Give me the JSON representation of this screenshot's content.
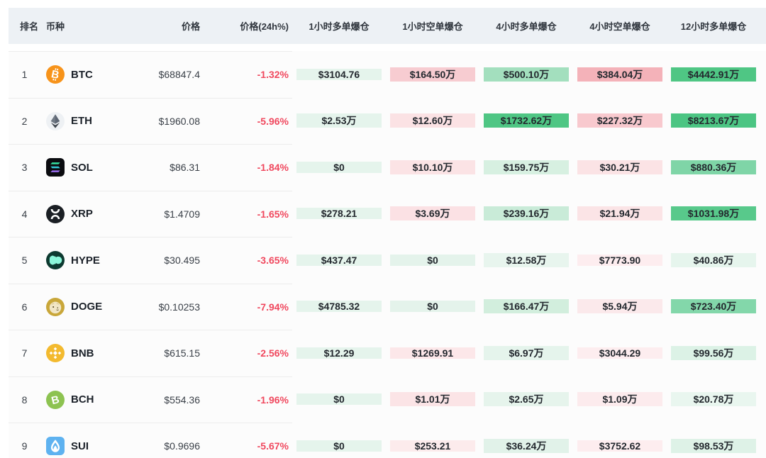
{
  "colors": {
    "header_bg": "#edf1f5",
    "row_bg": "#fcfcfc",
    "divider": "#ececec",
    "negative_red": "#f0485e",
    "value_text": "#23282e",
    "green_strong": "#4fc684",
    "red_strong": "#f4b2b9"
  },
  "table": {
    "columns": [
      {
        "key": "rank",
        "label": "排名"
      },
      {
        "key": "coin",
        "label": "币种"
      },
      {
        "key": "price",
        "label": "价格"
      },
      {
        "key": "change24h",
        "label": "价格(24h%)"
      },
      {
        "key": "liq_1h_long",
        "label": "1小时多单爆仓"
      },
      {
        "key": "liq_1h_short",
        "label": "1小时空单爆仓"
      },
      {
        "key": "liq_4h_long",
        "label": "4小时多单爆仓"
      },
      {
        "key": "liq_4h_short",
        "label": "4小时空单爆仓"
      },
      {
        "key": "liq_12h_long",
        "label": "12小时多单爆仓"
      }
    ],
    "rows": [
      {
        "rank": "1",
        "symbol": "BTC",
        "icon": "btc",
        "price": "$68847.4",
        "change": "-1.32%",
        "cells": [
          {
            "value": "$3104.76",
            "bg": "#e5f4ec"
          },
          {
            "value": "$164.50万",
            "bg": "#f7ccd1"
          },
          {
            "value": "$500.10万",
            "bg": "#a3dfbe"
          },
          {
            "value": "$384.04万",
            "bg": "#f4b2b9"
          },
          {
            "value": "$4442.91万",
            "bg": "#4fc684"
          }
        ],
        "edge_bg": "#f3aeb6"
      },
      {
        "rank": "2",
        "symbol": "ETH",
        "icon": "eth",
        "price": "$1960.08",
        "change": "-5.96%",
        "cells": [
          {
            "value": "$2.53万",
            "bg": "#e5f4ec"
          },
          {
            "value": "$12.60万",
            "bg": "#fbe2e4"
          },
          {
            "value": "$1732.62万",
            "bg": "#4fc684"
          },
          {
            "value": "$227.32万",
            "bg": "#f8c9ce"
          },
          {
            "value": "$8213.67万",
            "bg": "#4cc583"
          }
        ],
        "edge_bg": "#f6c3c9"
      },
      {
        "rank": "3",
        "symbol": "SOL",
        "icon": "sol",
        "price": "$86.31",
        "change": "-1.84%",
        "cells": [
          {
            "value": "$0",
            "bg": "#e5f4ec"
          },
          {
            "value": "$10.10万",
            "bg": "#fbe3e5"
          },
          {
            "value": "$159.75万",
            "bg": "#d7f0e1"
          },
          {
            "value": "$30.21万",
            "bg": "#fbe3e5"
          },
          {
            "value": "$880.36万",
            "bg": "#7fd5a7"
          }
        ],
        "edge_bg": "#fbe2e4"
      },
      {
        "rank": "4",
        "symbol": "XRP",
        "icon": "xrp",
        "price": "$1.4709",
        "change": "-1.65%",
        "cells": [
          {
            "value": "$278.21",
            "bg": "#e5f4ec"
          },
          {
            "value": "$3.69万",
            "bg": "#fbe1e4"
          },
          {
            "value": "$239.16万",
            "bg": "#c9ebd8"
          },
          {
            "value": "$21.94万",
            "bg": "#fbe4e6"
          },
          {
            "value": "$1031.98万",
            "bg": "#58c98b"
          }
        ],
        "edge_bg": "#fbe2e4"
      },
      {
        "rank": "5",
        "symbol": "HYPE",
        "icon": "hype",
        "price": "$30.495",
        "change": "-3.65%",
        "cells": [
          {
            "value": "$437.47",
            "bg": "#e5f4ec"
          },
          {
            "value": "$0",
            "bg": "#e4f3eb"
          },
          {
            "value": "$12.58万",
            "bg": "#e8f5ee"
          },
          {
            "value": "$7773.90",
            "bg": "#fdedef"
          },
          {
            "value": "$40.86万",
            "bg": "#e6f5ed"
          }
        ],
        "edge_bg": "#fdeeef"
      },
      {
        "rank": "6",
        "symbol": "DOGE",
        "icon": "doge",
        "price": "$0.10253",
        "change": "-7.94%",
        "cells": [
          {
            "value": "$4785.32",
            "bg": "#e5f4ec"
          },
          {
            "value": "$0",
            "bg": "#e4f3eb"
          },
          {
            "value": "$166.47万",
            "bg": "#d2eedd"
          },
          {
            "value": "$5.94万",
            "bg": "#fbe9eb"
          },
          {
            "value": "$723.40万",
            "bg": "#83d7aa"
          }
        ],
        "edge_bg": "#fbe8ea"
      },
      {
        "rank": "7",
        "symbol": "BNB",
        "icon": "bnb",
        "price": "$615.15",
        "change": "-2.56%",
        "cells": [
          {
            "value": "$12.29",
            "bg": "#e5f4ec"
          },
          {
            "value": "$1269.91",
            "bg": "#fce7e9"
          },
          {
            "value": "$6.97万",
            "bg": "#e5f4ec"
          },
          {
            "value": "$3044.29",
            "bg": "#fdedef"
          },
          {
            "value": "$99.56万",
            "bg": "#dcf2e6"
          }
        ],
        "edge_bg": "#fdeeef"
      },
      {
        "rank": "8",
        "symbol": "BCH",
        "icon": "bch",
        "price": "$554.36",
        "change": "-1.96%",
        "cells": [
          {
            "value": "$0",
            "bg": "#e5f4ec"
          },
          {
            "value": "$1.01万",
            "bg": "#fbe4e6"
          },
          {
            "value": "$2.65万",
            "bg": "#e6f4ec"
          },
          {
            "value": "$1.09万",
            "bg": "#fcebed"
          },
          {
            "value": "$20.78万",
            "bg": "#e9f6ef"
          }
        ],
        "edge_bg": "#fceced"
      },
      {
        "rank": "9",
        "symbol": "SUI",
        "icon": "sui",
        "price": "$0.9696",
        "change": "-5.67%",
        "cells": [
          {
            "value": "$0",
            "bg": "#e5f4ec"
          },
          {
            "value": "$253.21",
            "bg": "#fcebec"
          },
          {
            "value": "$36.24万",
            "bg": "#e1f2e9"
          },
          {
            "value": "$3752.62",
            "bg": "#fdedef"
          },
          {
            "value": "$98.53万",
            "bg": "#def2e7"
          }
        ],
        "edge_bg": "#fdeeef"
      }
    ]
  }
}
